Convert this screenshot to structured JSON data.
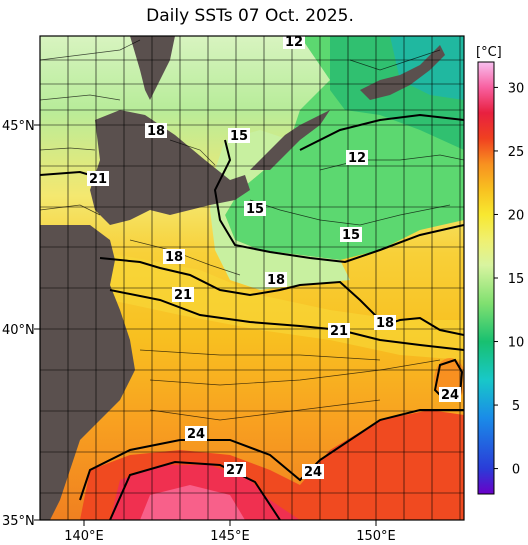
{
  "title": "Daily SSTs 07 Oct. 2025.",
  "lat_labels": [
    "45°N",
    "40°N",
    "35°N"
  ],
  "lon_labels": [
    "140°E",
    "145°E",
    "150°E"
  ],
  "colorbar": {
    "unit": "[°C]",
    "ticks": [
      "30",
      "25",
      "20",
      "15",
      "10",
      "5",
      "0"
    ],
    "range": [
      -2,
      32
    ],
    "stops": [
      {
        "v": -2,
        "c": "#6a00c8"
      },
      {
        "v": 0,
        "c": "#2a3cd8"
      },
      {
        "v": 4,
        "c": "#1a8ce8"
      },
      {
        "v": 7,
        "c": "#18c8c8"
      },
      {
        "v": 10,
        "c": "#18c070"
      },
      {
        "v": 13,
        "c": "#80e070"
      },
      {
        "v": 16,
        "c": "#d8f4a0"
      },
      {
        "v": 18,
        "c": "#f0f070"
      },
      {
        "v": 20,
        "c": "#f8e830"
      },
      {
        "v": 22,
        "c": "#f8c020"
      },
      {
        "v": 24,
        "c": "#f89020"
      },
      {
        "v": 26,
        "c": "#f04020"
      },
      {
        "v": 28,
        "c": "#e82040"
      },
      {
        "v": 30,
        "c": "#f860a0"
      },
      {
        "v": 32,
        "c": "#f8c0f0"
      }
    ]
  },
  "contour_labels": [
    "12",
    "18",
    "15",
    "12",
    "21",
    "15",
    "15",
    "18",
    "18",
    "21",
    "21",
    "18",
    "24",
    "24",
    "27",
    "24"
  ],
  "colors": {
    "land": "#5a504e",
    "grid": "#000000"
  }
}
